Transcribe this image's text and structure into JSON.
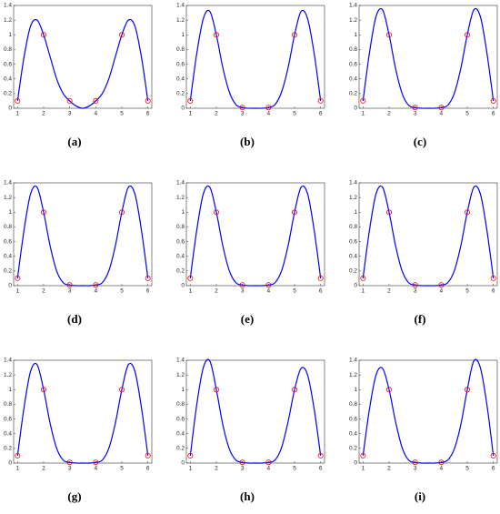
{
  "chart_data": [
    {
      "type": "line",
      "caption": "(a)",
      "xlim": [
        0.85,
        6.15
      ],
      "ylim": [
        0,
        1.4
      ],
      "xticks": [
        1,
        2,
        3,
        4,
        5,
        6
      ],
      "yticks": [
        0,
        0.2,
        0.4,
        0.6,
        0.8,
        1,
        1.2,
        1.4
      ],
      "series": [
        {
          "color": "#0000ff",
          "x": [
            1,
            1.25,
            1.5,
            1.75,
            2,
            2.25,
            2.5,
            2.75,
            3,
            3.25,
            3.5,
            3.75,
            4,
            4.25,
            4.5,
            4.75,
            5,
            5.25,
            5.5,
            5.75,
            6
          ],
          "values": [
            0.1,
            0.7,
            1.12,
            1.2,
            1.0,
            0.7,
            0.4,
            0.2,
            0.1,
            0.03,
            0.0,
            0.03,
            0.1,
            0.2,
            0.4,
            0.7,
            1.0,
            1.2,
            1.12,
            0.7,
            0.1
          ]
        },
        {
          "color": "#ff0000",
          "marker": "circle",
          "x": [
            1,
            2,
            3,
            4,
            5,
            6
          ],
          "values": [
            0.1,
            1,
            0.1,
            0.1,
            1,
            0.1
          ]
        }
      ]
    },
    {
      "type": "line",
      "caption": "(b)",
      "xlim": [
        0.85,
        6.15
      ],
      "ylim": [
        0,
        1.4
      ],
      "xticks": [
        1,
        2,
        3,
        4,
        5,
        6
      ],
      "yticks": [
        0,
        0.2,
        0.4,
        0.6,
        0.8,
        1,
        1.2,
        1.4
      ],
      "series": [
        {
          "color": "#0000ff",
          "x": [
            1,
            1.25,
            1.5,
            1.75,
            2,
            2.25,
            2.5,
            2.75,
            3,
            3.25,
            3.5,
            3.75,
            4,
            4.25,
            4.5,
            4.75,
            5,
            5.25,
            5.5,
            5.75,
            6
          ],
          "values": [
            0.1,
            0.75,
            1.22,
            1.32,
            1.0,
            0.55,
            0.22,
            0.05,
            0.01,
            0.0,
            0.0,
            0.0,
            0.01,
            0.05,
            0.22,
            0.55,
            1.0,
            1.32,
            1.22,
            0.75,
            0.1
          ]
        },
        {
          "color": "#ff0000",
          "marker": "circle",
          "x": [
            1,
            2,
            3,
            4,
            5,
            6
          ],
          "values": [
            0.1,
            1,
            0.01,
            0.01,
            1,
            0.1
          ]
        }
      ]
    },
    {
      "type": "line",
      "caption": "(c)",
      "xlim": [
        0.85,
        6.15
      ],
      "ylim": [
        0,
        1.4
      ],
      "xticks": [
        1,
        2,
        3,
        4,
        5,
        6
      ],
      "yticks": [
        0,
        0.2,
        0.4,
        0.6,
        0.8,
        1,
        1.2,
        1.4
      ],
      "series": [
        {
          "color": "#0000ff",
          "x": [
            1,
            1.25,
            1.5,
            1.75,
            2,
            2.25,
            2.5,
            2.75,
            3,
            3.25,
            3.5,
            3.75,
            4,
            4.25,
            4.5,
            4.75,
            5,
            5.25,
            5.5,
            5.75,
            6
          ],
          "values": [
            0.1,
            0.76,
            1.25,
            1.34,
            1.0,
            0.54,
            0.2,
            0.04,
            0.01,
            0.0,
            0.0,
            0.0,
            0.01,
            0.04,
            0.2,
            0.54,
            1.0,
            1.34,
            1.25,
            0.76,
            0.1
          ]
        },
        {
          "color": "#ff0000",
          "marker": "circle",
          "x": [
            1,
            2,
            3,
            4,
            5,
            6
          ],
          "values": [
            0.1,
            1,
            0.01,
            0.01,
            1,
            0.1
          ]
        }
      ]
    },
    {
      "type": "line",
      "caption": "(d)",
      "xlim": [
        0.85,
        6.15
      ],
      "ylim": [
        0,
        1.4
      ],
      "xticks": [
        1,
        2,
        3,
        4,
        5,
        6
      ],
      "yticks": [
        0,
        0.2,
        0.4,
        0.6,
        0.8,
        1,
        1.2,
        1.4
      ],
      "series": [
        {
          "color": "#0000ff",
          "x": [
            1,
            1.25,
            1.5,
            1.75,
            2,
            2.25,
            2.5,
            2.75,
            3,
            3.25,
            3.5,
            3.75,
            4,
            4.25,
            4.5,
            4.75,
            5,
            5.25,
            5.5,
            5.75,
            6
          ],
          "values": [
            0.1,
            0.76,
            1.25,
            1.34,
            1.0,
            0.54,
            0.2,
            0.04,
            0.01,
            0.0,
            0.0,
            0.0,
            0.01,
            0.04,
            0.2,
            0.54,
            1.0,
            1.34,
            1.25,
            0.76,
            0.1
          ]
        },
        {
          "color": "#ff0000",
          "marker": "circle",
          "x": [
            1,
            2,
            3,
            4,
            5,
            6
          ],
          "values": [
            0.1,
            1,
            0.01,
            0.01,
            1,
            0.1
          ]
        }
      ]
    },
    {
      "type": "line",
      "caption": "(e)",
      "xlim": [
        0.85,
        6.15
      ],
      "ylim": [
        0,
        1.4
      ],
      "xticks": [
        1,
        2,
        3,
        4,
        5,
        6
      ],
      "yticks": [
        0,
        0.2,
        0.4,
        0.6,
        0.8,
        1,
        1.2,
        1.4
      ],
      "series": [
        {
          "color": "#0000ff",
          "x": [
            1,
            1.25,
            1.5,
            1.75,
            2,
            2.25,
            2.5,
            2.75,
            3,
            3.25,
            3.5,
            3.75,
            4,
            4.25,
            4.5,
            4.75,
            5,
            5.25,
            5.5,
            5.75,
            6
          ],
          "values": [
            0.1,
            0.76,
            1.25,
            1.34,
            1.0,
            0.54,
            0.2,
            0.04,
            0.01,
            0.0,
            0.0,
            0.0,
            0.01,
            0.04,
            0.2,
            0.54,
            1.0,
            1.34,
            1.25,
            0.76,
            0.1
          ]
        },
        {
          "color": "#ff0000",
          "marker": "circle",
          "x": [
            1,
            2,
            3,
            4,
            5,
            6
          ],
          "values": [
            0.1,
            1,
            0.01,
            0.01,
            1,
            0.1
          ]
        }
      ]
    },
    {
      "type": "line",
      "caption": "(f)",
      "xlim": [
        0.85,
        6.15
      ],
      "ylim": [
        0,
        1.4
      ],
      "xticks": [
        1,
        2,
        3,
        4,
        5,
        6
      ],
      "yticks": [
        0,
        0.2,
        0.4,
        0.6,
        0.8,
        1,
        1.2,
        1.4
      ],
      "series": [
        {
          "color": "#0000ff",
          "x": [
            1,
            1.25,
            1.5,
            1.75,
            2,
            2.25,
            2.5,
            2.75,
            3,
            3.25,
            3.5,
            3.75,
            4,
            4.25,
            4.5,
            4.75,
            5,
            5.25,
            5.5,
            5.75,
            6
          ],
          "values": [
            0.1,
            0.76,
            1.25,
            1.34,
            1.0,
            0.54,
            0.2,
            0.04,
            0.01,
            0.0,
            0.0,
            0.0,
            0.01,
            0.04,
            0.2,
            0.54,
            1.0,
            1.34,
            1.25,
            0.76,
            0.1
          ]
        },
        {
          "color": "#ff0000",
          "marker": "circle",
          "x": [
            1,
            2,
            3,
            4,
            5,
            6
          ],
          "values": [
            0.1,
            1,
            0.01,
            0.01,
            1,
            0.1
          ]
        }
      ]
    },
    {
      "type": "line",
      "caption": "(g)",
      "xlim": [
        0.85,
        6.15
      ],
      "ylim": [
        0,
        1.4
      ],
      "xticks": [
        1,
        2,
        3,
        4,
        5,
        6
      ],
      "yticks": [
        0,
        0.2,
        0.4,
        0.6,
        0.8,
        1,
        1.2,
        1.4
      ],
      "series": [
        {
          "color": "#0000ff",
          "x": [
            1,
            1.25,
            1.5,
            1.75,
            2,
            2.25,
            2.5,
            2.75,
            3,
            3.25,
            3.5,
            3.75,
            4,
            4.25,
            4.5,
            4.75,
            5,
            5.25,
            5.5,
            5.75,
            6
          ],
          "values": [
            0.1,
            0.76,
            1.25,
            1.34,
            1.0,
            0.54,
            0.2,
            0.04,
            0.01,
            0.0,
            0.0,
            0.0,
            0.01,
            0.04,
            0.2,
            0.54,
            1.0,
            1.34,
            1.25,
            0.76,
            0.1
          ]
        },
        {
          "color": "#ff0000",
          "marker": "circle",
          "x": [
            1,
            2,
            3,
            4,
            5,
            6
          ],
          "values": [
            0.1,
            1,
            0.01,
            0.01,
            1,
            0.1
          ]
        }
      ]
    },
    {
      "type": "line",
      "caption": "(h)",
      "xlim": [
        0.85,
        6.15
      ],
      "ylim": [
        0,
        1.4
      ],
      "xticks": [
        1,
        2,
        3,
        4,
        5,
        6
      ],
      "yticks": [
        0,
        0.2,
        0.4,
        0.6,
        0.8,
        1,
        1.2,
        1.4
      ],
      "series": [
        {
          "color": "#0000ff",
          "x": [
            1,
            1.25,
            1.5,
            1.75,
            2,
            2.25,
            2.5,
            2.75,
            3,
            3.25,
            3.5,
            3.75,
            4,
            4.25,
            4.5,
            4.75,
            5,
            5.25,
            5.5,
            5.75,
            6
          ],
          "values": [
            0.1,
            0.8,
            1.3,
            1.39,
            1.0,
            0.52,
            0.19,
            0.04,
            0.01,
            0.0,
            0.0,
            0.0,
            0.01,
            0.04,
            0.21,
            0.56,
            1.0,
            1.29,
            1.2,
            0.74,
            0.1
          ]
        },
        {
          "color": "#ff0000",
          "marker": "circle",
          "x": [
            1,
            2,
            3,
            4,
            5,
            6
          ],
          "values": [
            0.1,
            1,
            0.01,
            0.01,
            1,
            0.1
          ]
        }
      ]
    },
    {
      "type": "line",
      "caption": "(i)",
      "xlim": [
        0.85,
        6.15
      ],
      "ylim": [
        0,
        1.4
      ],
      "xticks": [
        1,
        2,
        3,
        4,
        5,
        6
      ],
      "yticks": [
        0,
        0.2,
        0.4,
        0.6,
        0.8,
        1,
        1.2,
        1.4
      ],
      "series": [
        {
          "color": "#0000ff",
          "x": [
            1,
            1.25,
            1.5,
            1.75,
            2,
            2.25,
            2.5,
            2.75,
            3,
            3.25,
            3.5,
            3.75,
            4,
            4.25,
            4.5,
            4.75,
            5,
            5.25,
            5.5,
            5.75,
            6
          ],
          "values": [
            0.1,
            0.74,
            1.2,
            1.29,
            1.0,
            0.56,
            0.21,
            0.04,
            0.01,
            0.0,
            0.0,
            0.0,
            0.01,
            0.04,
            0.19,
            0.52,
            1.0,
            1.39,
            1.3,
            0.8,
            0.1
          ]
        },
        {
          "color": "#ff0000",
          "marker": "circle",
          "x": [
            1,
            2,
            3,
            4,
            5,
            6
          ],
          "values": [
            0.1,
            1,
            0.01,
            0.01,
            1,
            0.1
          ]
        }
      ]
    }
  ]
}
